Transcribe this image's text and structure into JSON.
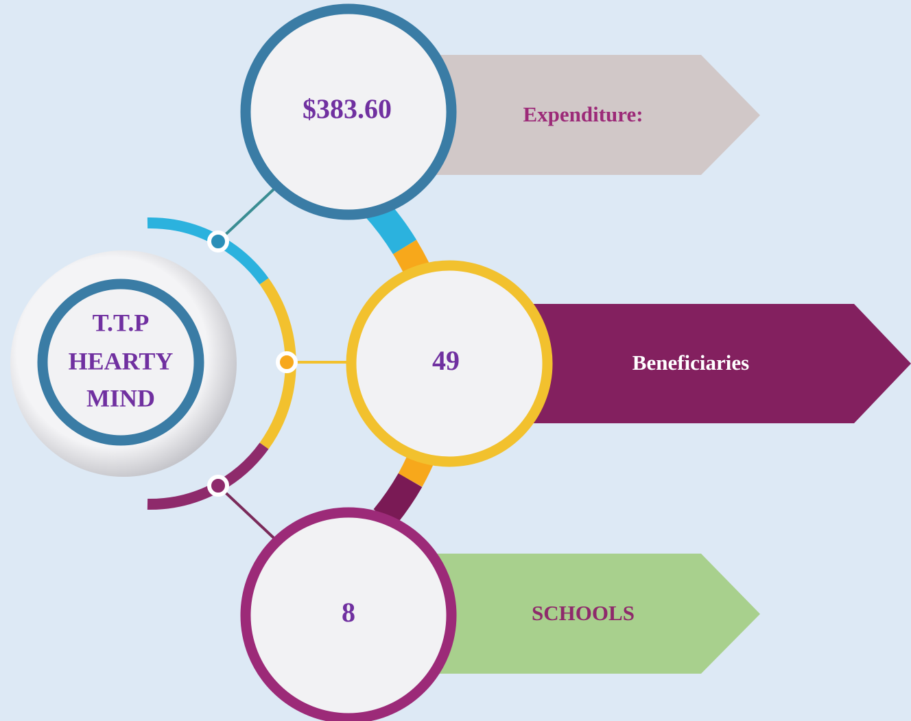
{
  "center": {
    "title_lines": [
      "T.T.P",
      "HEARTY",
      "MIND"
    ]
  },
  "items": [
    {
      "value": "$383.60",
      "label": "Expenditure:"
    },
    {
      "value": "49",
      "label": "Beneficiaries"
    },
    {
      "value": "8",
      "label": "SCHOOLS"
    }
  ]
}
